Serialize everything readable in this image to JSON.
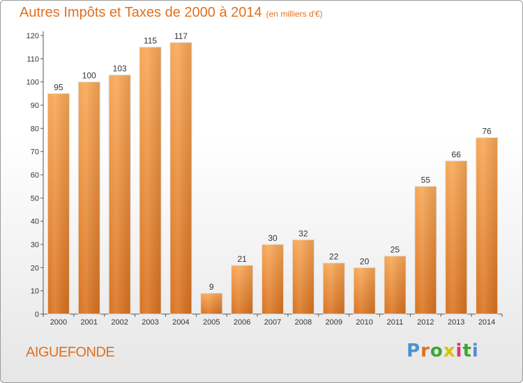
{
  "title": "Autres Impôts et Taxes de 2000 à 2014",
  "subtitle": "(en milliers d'€)",
  "commune": "AIGUEFONDE",
  "logo": {
    "text": "Proxiti",
    "colors": [
      "#4a90d6",
      "#e07020",
      "#3fa535",
      "#d6c400",
      "#e03070",
      "#3fa535",
      "#4a90d6"
    ]
  },
  "colors": {
    "bar": "#f08a30",
    "bar_highlight": "#f7a552",
    "accent": "#e07020"
  },
  "chart_data": {
    "type": "bar",
    "title": "Autres Impôts et Taxes de 2000 à 2014",
    "subtitle": "(en milliers d'€)",
    "xlabel": "",
    "ylabel": "",
    "ylim": [
      0,
      120
    ],
    "yticks": [
      0,
      10,
      20,
      30,
      40,
      50,
      60,
      70,
      80,
      90,
      100,
      110,
      120
    ],
    "grid": false,
    "categories": [
      "2000",
      "2001",
      "2002",
      "2003",
      "2004",
      "2005",
      "2006",
      "2007",
      "2008",
      "2009",
      "2010",
      "2011",
      "2012",
      "2013",
      "2014"
    ],
    "values": [
      95,
      100,
      103,
      115,
      117,
      9,
      21,
      30,
      32,
      22,
      20,
      25,
      55,
      66,
      76
    ]
  }
}
